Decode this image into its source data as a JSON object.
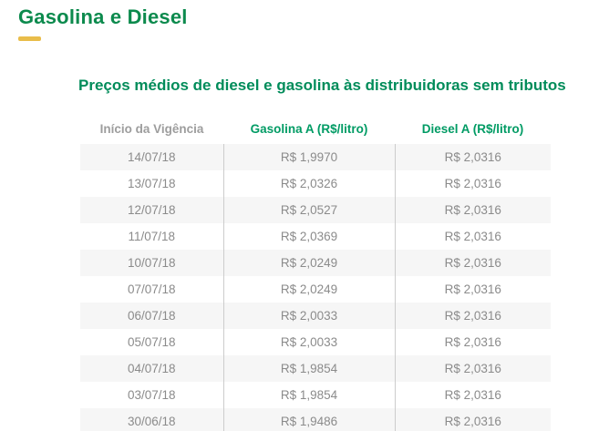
{
  "page": {
    "title": "Gasolina e Diesel",
    "section_heading": "Preços médios de diesel e gasolina às distribuidoras sem tributos"
  },
  "colors": {
    "title_green": "#0c8a4d",
    "heading_green": "#008c5a",
    "header_green": "#009b64",
    "header_gray": "#9d9d9d",
    "accent_yellow": "#e9bd4a",
    "row_alt_bg": "#f6f6f6",
    "cell_text": "#8b8b8b",
    "divider": "#cccccc"
  },
  "table": {
    "columns": [
      "Início da Vigência",
      "Gasolina A (R$/litro)",
      "Diesel A (R$/litro)"
    ],
    "rows": [
      [
        "14/07/18",
        "R$ 1,9970",
        "R$ 2,0316"
      ],
      [
        "13/07/18",
        "R$ 2,0326",
        "R$ 2,0316"
      ],
      [
        "12/07/18",
        "R$ 2,0527",
        "R$ 2,0316"
      ],
      [
        "11/07/18",
        "R$ 2,0369",
        "R$ 2,0316"
      ],
      [
        "10/07/18",
        "R$ 2,0249",
        "R$ 2,0316"
      ],
      [
        "07/07/18",
        "R$ 2,0249",
        "R$ 2,0316"
      ],
      [
        "06/07/18",
        "R$ 2,0033",
        "R$ 2,0316"
      ],
      [
        "05/07/18",
        "R$ 2,0033",
        "R$ 2,0316"
      ],
      [
        "04/07/18",
        "R$ 1,9854",
        "R$ 2,0316"
      ],
      [
        "03/07/18",
        "R$ 1,9854",
        "R$ 2,0316"
      ],
      [
        "30/06/18",
        "R$ 1,9486",
        "R$ 2,0316"
      ]
    ]
  }
}
